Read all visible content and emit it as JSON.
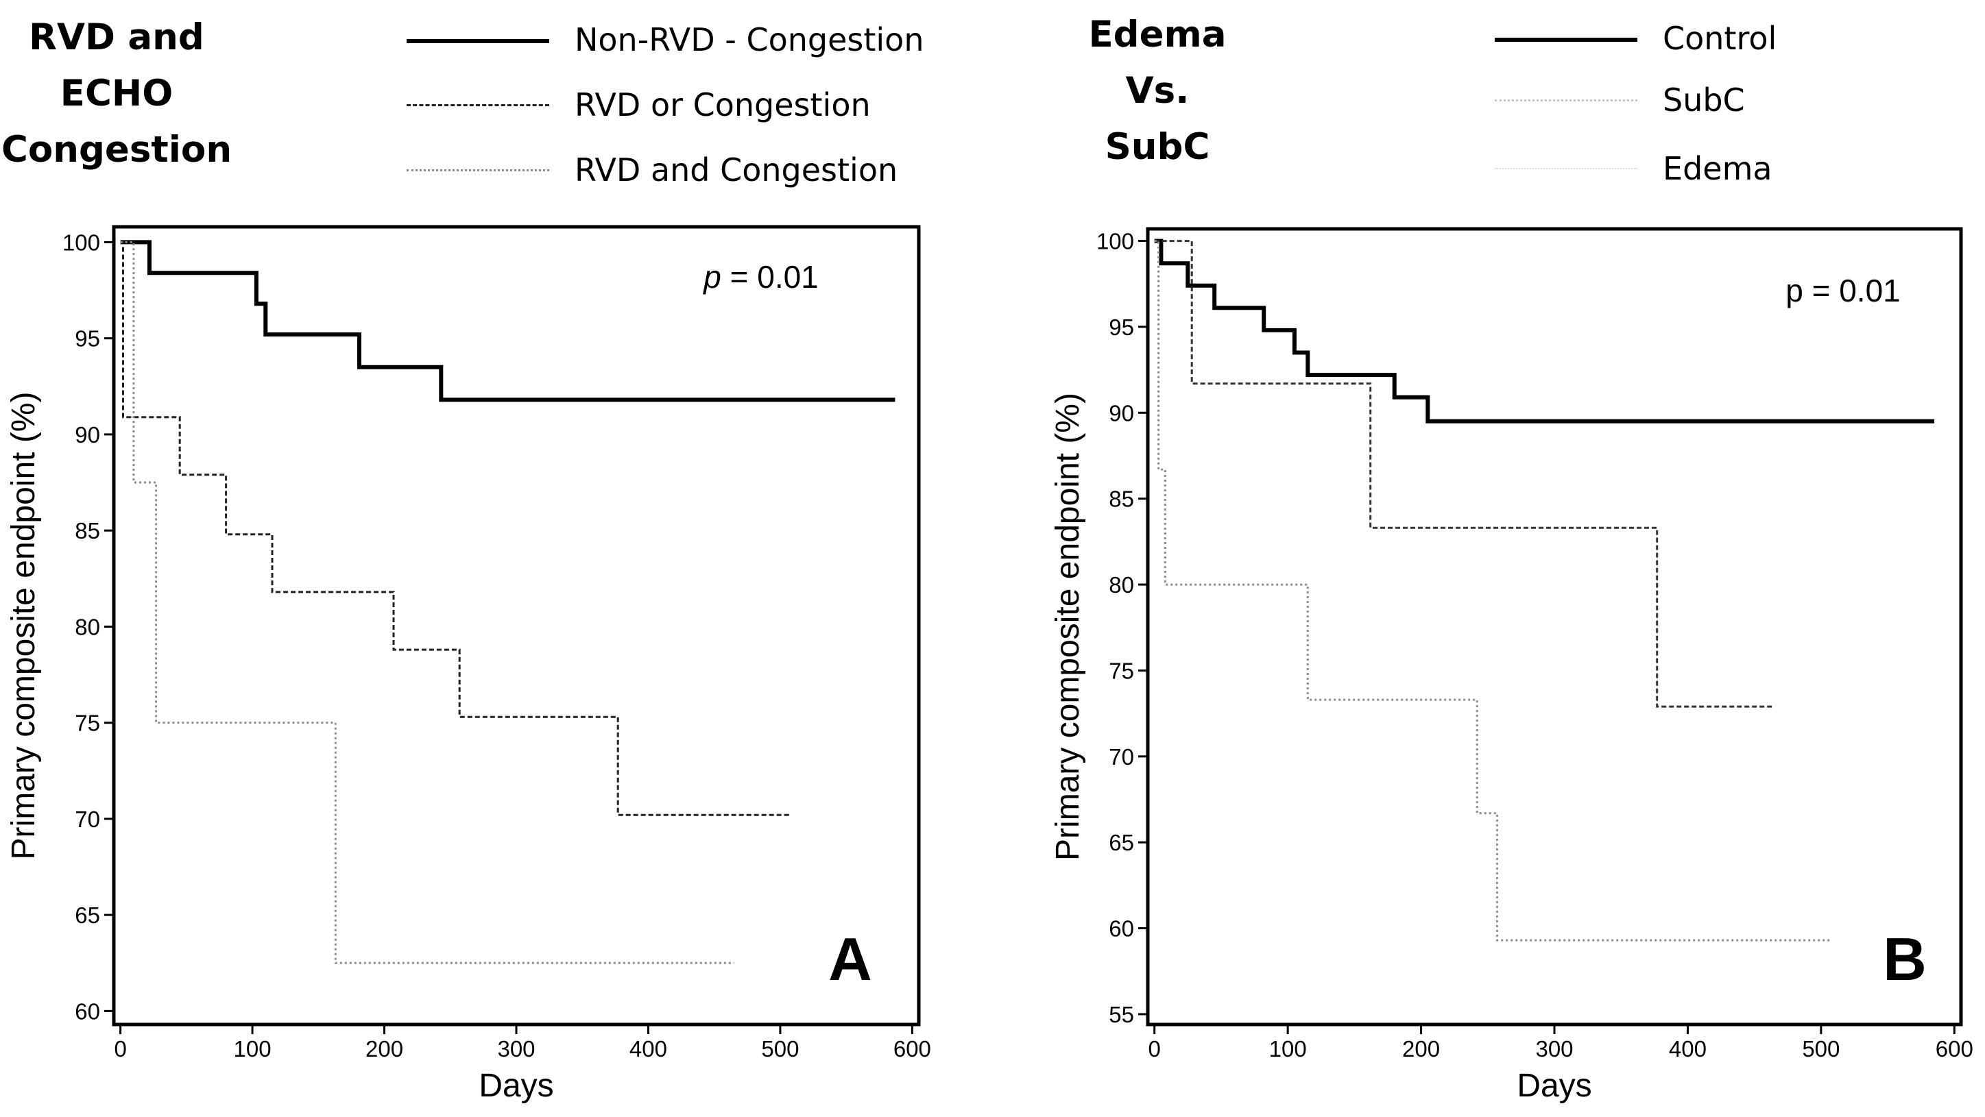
{
  "chart_data": [
    {
      "type": "line",
      "title": "RVD and ECHO Congestion",
      "title_lines": [
        "RVD and",
        "ECHO",
        "Congestion"
      ],
      "panel_label": "A",
      "annotation": "p = 0.01",
      "annotation_italic": "p",
      "annotation_rest": " = 0.01",
      "xlabel": "Days",
      "ylabel": "Primary composite endpoint (%)",
      "xlim": [
        -5,
        605
      ],
      "ylim": [
        59.3,
        100.8
      ],
      "xticks": [
        0,
        100,
        200,
        300,
        400,
        500,
        600
      ],
      "xtick_labels": [
        "0",
        "100",
        "200",
        "300",
        "400",
        "500",
        "600"
      ],
      "yticks": [
        60,
        65,
        70,
        75,
        80,
        85,
        90,
        95,
        100
      ],
      "ytick_labels": [
        "60",
        "65",
        "70",
        "75",
        "80",
        "85",
        "90",
        "95",
        "100"
      ],
      "step": true,
      "legend_position": "top",
      "series": [
        {
          "name": "Non-RVD - Congestion",
          "style": "solid-thick",
          "color": "#000000",
          "x": [
            0,
            22,
            103,
            110,
            181,
            243,
            587
          ],
          "y": [
            100,
            98.4,
            96.8,
            95.2,
            93.5,
            91.8,
            91.8
          ]
        },
        {
          "name": "RVD or Congestion",
          "style": "dashed",
          "color": "#222222",
          "x": [
            0,
            2,
            45,
            80,
            115,
            207,
            257,
            377,
            508
          ],
          "y": [
            100,
            90.9,
            87.9,
            84.8,
            81.8,
            78.8,
            75.3,
            70.2,
            70.2
          ]
        },
        {
          "name": "RVD and Congestion",
          "style": "dotted-light",
          "color": "#8c8c8c",
          "x": [
            0,
            10,
            27,
            163,
            465
          ],
          "y": [
            100,
            87.5,
            75,
            62.5,
            62.5
          ]
        }
      ]
    },
    {
      "type": "line",
      "title": "Edema Vs. SubC",
      "title_lines": [
        "Edema",
        "Vs.",
        "SubC"
      ],
      "panel_label": "B",
      "annotation": "p = 0.01",
      "xlabel": "Days",
      "ylabel": "Primary composite endpoint (%)",
      "xlim": [
        -5,
        605
      ],
      "ylim": [
        54.4,
        100.7
      ],
      "xticks": [
        0,
        100,
        200,
        300,
        400,
        500,
        600
      ],
      "xtick_labels": [
        "0",
        "100",
        "200",
        "300",
        "400",
        "500",
        "600"
      ],
      "yticks": [
        55,
        60,
        65,
        70,
        75,
        80,
        85,
        90,
        95,
        100
      ],
      "ytick_labels": [
        "55",
        "60",
        "65",
        "70",
        "75",
        "80",
        "85",
        "90",
        "95",
        "100"
      ],
      "step": true,
      "legend_position": "top",
      "series": [
        {
          "name": "Control",
          "style": "solid-thick",
          "color": "#000000",
          "x": [
            0,
            5,
            25,
            45,
            82,
            105,
            115,
            180,
            205,
            585
          ],
          "y": [
            100,
            98.7,
            97.4,
            96.1,
            94.8,
            93.5,
            92.2,
            90.9,
            89.5,
            89.5
          ]
        },
        {
          "name": "SubC",
          "style": "dashed",
          "color": "#333333",
          "x": [
            0,
            28,
            162,
            377,
            465
          ],
          "y": [
            100,
            91.7,
            83.3,
            72.9,
            72.9
          ]
        },
        {
          "name": "Edema",
          "style": "dotted-light",
          "color": "#8c8c8c",
          "x": [
            0,
            3,
            8,
            115,
            242,
            257,
            508
          ],
          "y": [
            100,
            86.7,
            80,
            73.3,
            66.7,
            59.3,
            59.3
          ]
        }
      ]
    }
  ]
}
